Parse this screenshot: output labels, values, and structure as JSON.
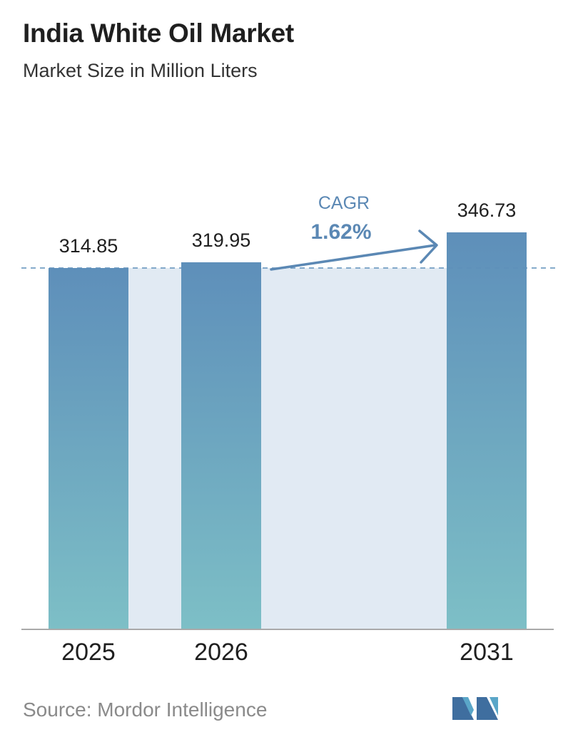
{
  "header": {
    "title": "India White Oil Market",
    "subtitle": "Market Size in Million Liters"
  },
  "chart_data": {
    "type": "bar",
    "categories": [
      "2025",
      "2026",
      "2031"
    ],
    "values": [
      314.85,
      319.95,
      346.73
    ],
    "value_labels": [
      "314.85",
      "319.95",
      "346.73"
    ],
    "annotation": {
      "label": "CAGR",
      "value": "1.62%"
    },
    "colors": {
      "bar_top": "#5e8fba",
      "bar_bottom": "#7dbfc6",
      "band": "#e1eaf3",
      "accent": "#5b88b4"
    }
  },
  "footer": {
    "source": "Source:  Mordor Intelligence",
    "logo": "mordor-intelligence-logo"
  }
}
